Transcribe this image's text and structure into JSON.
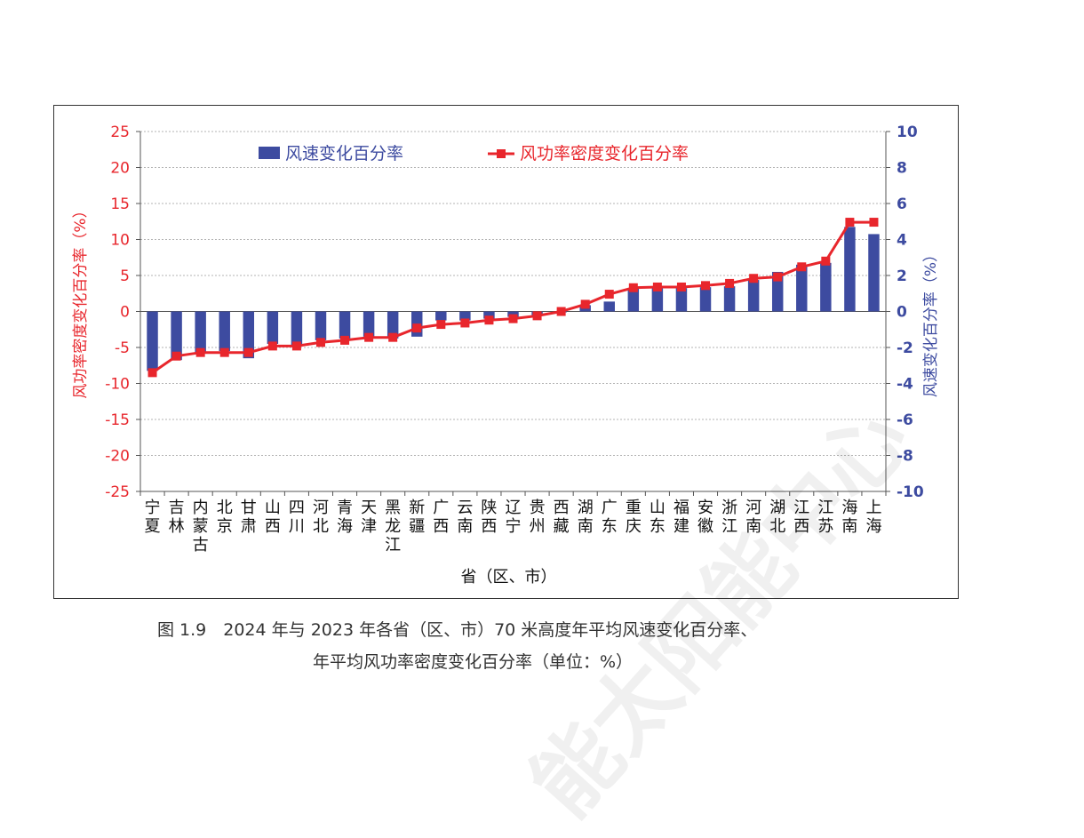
{
  "chart_data": {
    "type": "bar",
    "title": "",
    "legend": {
      "position": "top",
      "items": [
        "风速变化百分率",
        "风功率密度变化百分率"
      ]
    },
    "xlabel": "省（区、市）",
    "ylabel_left": "风功率密度变化百分率（%）",
    "ylabel_right": "风速变化百分率（%）",
    "ylim_left": [
      -25,
      25
    ],
    "ylim_right": [
      -10,
      10
    ],
    "yticks_left": [
      "25",
      "20",
      "15",
      "10",
      "5",
      "0",
      "-5",
      "-10",
      "-15",
      "-20",
      "-25"
    ],
    "yticks_right": [
      "10",
      "8",
      "6",
      "4",
      "2",
      "0",
      "-2",
      "-4",
      "-6",
      "-8",
      "-10"
    ],
    "grid": true,
    "categories": [
      "宁夏",
      "吉林",
      "内蒙古",
      "北京",
      "甘肃",
      "山西",
      "四川",
      "河北",
      "青海",
      "天津",
      "黑龙江",
      "新疆",
      "广西",
      "云南",
      "陕西",
      "辽宁",
      "贵州",
      "西藏",
      "湖南",
      "广东",
      "重庆",
      "山东",
      "福建",
      "安徽",
      "浙江",
      "河南",
      "湖北",
      "江西",
      "江苏",
      "海南",
      "上海"
    ],
    "series": [
      {
        "name": "风速变化百分率",
        "type": "bar",
        "axis": "right",
        "color": "#3d4ba0",
        "values": [
          -3.3,
          -2.7,
          -2.3,
          -2.2,
          -2.6,
          -1.8,
          -1.9,
          -1.6,
          -1.5,
          -1.4,
          -1.5,
          -1.4,
          -0.5,
          -0.5,
          -0.4,
          -0.3,
          -0.2,
          -0.05,
          0.35,
          0.55,
          1.3,
          1.3,
          1.3,
          1.35,
          1.4,
          1.75,
          2.2,
          2.6,
          2.7,
          4.7,
          4.3
        ]
      },
      {
        "name": "风功率密度变化百分率",
        "type": "line",
        "axis": "left",
        "color": "#e8262c",
        "values": [
          -8.5,
          -6.2,
          -5.7,
          -5.7,
          -5.7,
          -4.8,
          -4.8,
          -4.3,
          -4.0,
          -3.6,
          -3.6,
          -2.3,
          -1.8,
          -1.6,
          -1.2,
          -1.0,
          -0.6,
          0.0,
          1.0,
          2.4,
          3.3,
          3.4,
          3.4,
          3.6,
          3.9,
          4.6,
          4.8,
          6.2,
          7.0,
          12.4,
          12.4
        ]
      }
    ]
  },
  "caption": {
    "line1": "图 1.9　2024 年与 2023 年各省（区、市）70 米高度年平均风速变化百分率、",
    "line2": "年平均风功率密度变化百分率（单位：%）"
  },
  "watermark": {
    "text": "能太阳能中心"
  },
  "colors": {
    "left_axis": "#e8262c",
    "right_axis": "#3d4ba0",
    "bar": "#3d4ba0",
    "line": "#e8262c",
    "grid": "#9a9a9a"
  }
}
